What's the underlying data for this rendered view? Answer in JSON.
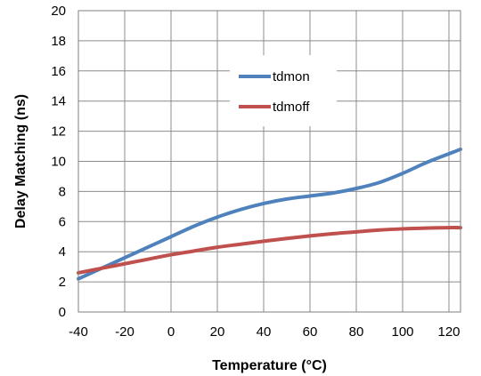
{
  "chart_data": {
    "type": "line",
    "title": "",
    "xlabel": "Temperature (°C)",
    "ylabel": "Delay Matching (ns)",
    "xlim": [
      -40,
      125
    ],
    "ylim": [
      0,
      20
    ],
    "xticks": [
      -40,
      -20,
      0,
      20,
      40,
      60,
      80,
      100,
      120
    ],
    "yticks": [
      0,
      2,
      4,
      6,
      8,
      10,
      12,
      14,
      16,
      18,
      20
    ],
    "grid": true,
    "legend": "top-center",
    "series": [
      {
        "name": "tdmon",
        "color": "#4F81BD",
        "x": [
          -40,
          -30,
          -20,
          -10,
          0,
          10,
          20,
          30,
          40,
          50,
          60,
          70,
          80,
          90,
          100,
          110,
          120,
          125
        ],
        "y": [
          2.2,
          2.9,
          3.6,
          4.3,
          5.0,
          5.7,
          6.3,
          6.8,
          7.2,
          7.5,
          7.7,
          7.9,
          8.2,
          8.6,
          9.2,
          9.9,
          10.5,
          10.8
        ]
      },
      {
        "name": "tdmoff",
        "color": "#C0504D",
        "x": [
          -40,
          -30,
          -20,
          -10,
          0,
          10,
          20,
          30,
          40,
          50,
          60,
          70,
          80,
          90,
          100,
          110,
          120,
          125
        ],
        "y": [
          2.6,
          2.9,
          3.2,
          3.5,
          3.8,
          4.05,
          4.3,
          4.5,
          4.7,
          4.88,
          5.05,
          5.2,
          5.32,
          5.44,
          5.52,
          5.57,
          5.6,
          5.6
        ]
      }
    ]
  }
}
